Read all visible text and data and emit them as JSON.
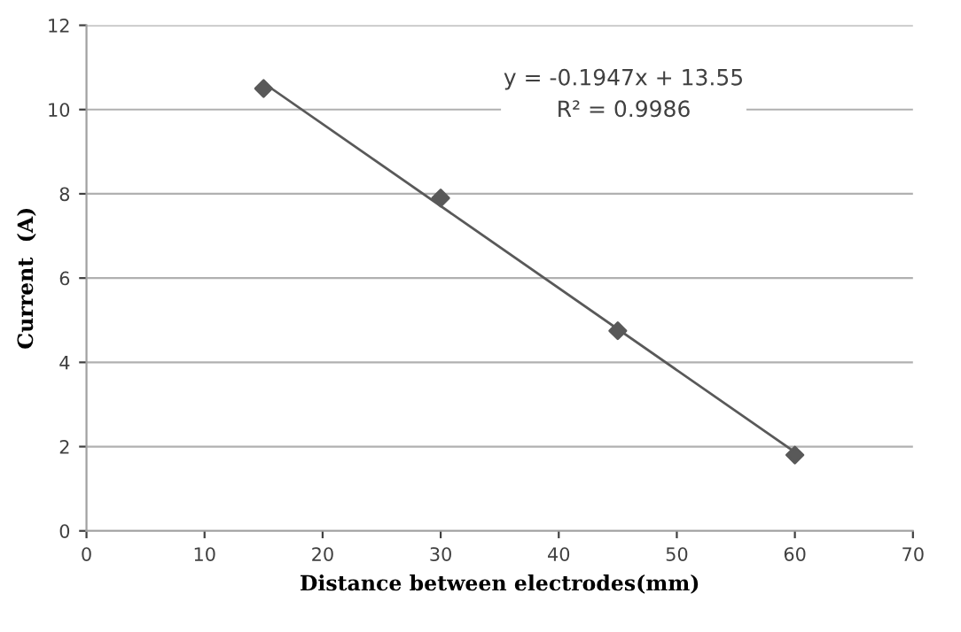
{
  "chart_data": {
    "type": "scatter",
    "xlabel": "Distance between electrodes(mm)",
    "ylabel": "Current  (A)",
    "series": [
      {
        "color": "#595959",
        "marker": "diamond",
        "x": [
          15,
          30,
          45,
          60
        ],
        "values": [
          10.5,
          7.9,
          4.75,
          1.8
        ]
      },
      {
        "type": "line",
        "color": "#595959",
        "marker": "none",
        "line_style": "solid",
        "x": [
          15,
          60
        ],
        "values": [
          10.63,
          1.87
        ]
      }
    ],
    "annotations": [
      "y = -0.1947x + 13.55\nR² = 0.9986"
    ],
    "xlim": [
      0,
      70
    ],
    "xticks": [
      0,
      10,
      20,
      30,
      40,
      50,
      60,
      70
    ],
    "ylim": [
      0,
      12
    ],
    "yticks": [
      0,
      2,
      4,
      6,
      8,
      10,
      12
    ],
    "grid": "y",
    "legend": false
  }
}
